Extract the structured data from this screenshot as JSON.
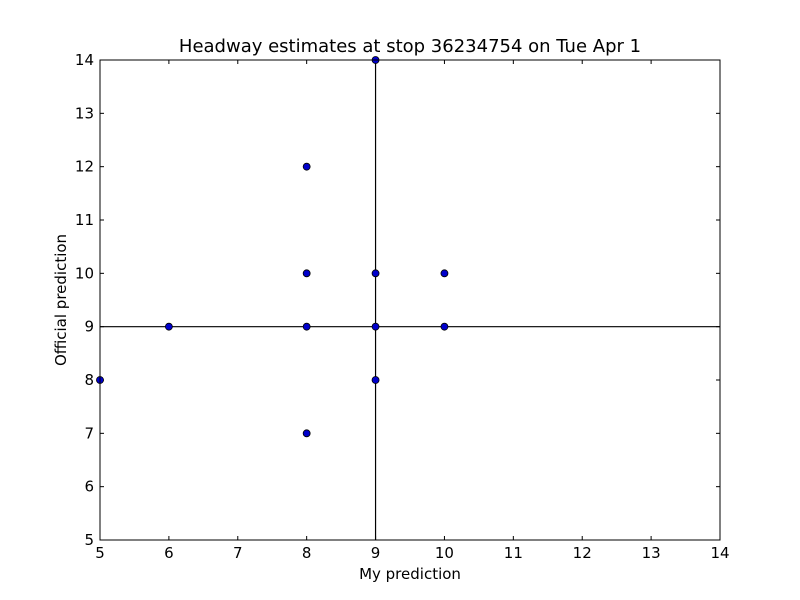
{
  "chart_data": {
    "type": "scatter",
    "title": "Headway estimates at stop 36234754 on Tue Apr 1",
    "xlabel": "My prediction",
    "ylabel": "Official prediction",
    "xlim": [
      5,
      14
    ],
    "ylim": [
      5,
      14
    ],
    "xticks": [
      5,
      6,
      7,
      8,
      9,
      10,
      11,
      12,
      13,
      14
    ],
    "yticks": [
      5,
      6,
      7,
      8,
      9,
      10,
      11,
      12,
      13,
      14
    ],
    "grid": false,
    "reference_lines": {
      "vertical_x": 9,
      "horizontal_y": 9
    },
    "series": [
      {
        "color": "#0000cc",
        "points": [
          {
            "x": 5,
            "y": 8
          },
          {
            "x": 6,
            "y": 9
          },
          {
            "x": 8,
            "y": 7
          },
          {
            "x": 8,
            "y": 9
          },
          {
            "x": 8,
            "y": 10
          },
          {
            "x": 8,
            "y": 12
          },
          {
            "x": 9,
            "y": 8
          },
          {
            "x": 9,
            "y": 9
          },
          {
            "x": 9,
            "y": 10
          },
          {
            "x": 9,
            "y": 14
          },
          {
            "x": 10,
            "y": 9
          },
          {
            "x": 10,
            "y": 10
          }
        ]
      }
    ]
  }
}
